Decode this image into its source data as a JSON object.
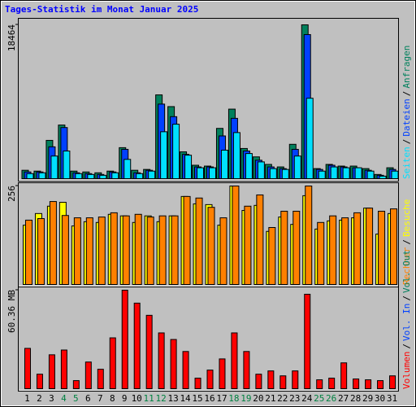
{
  "title": "Tages-Statistik im Monat Januar 2025",
  "legend_separator": "/",
  "chart_data": [
    {
      "type": "bar",
      "series": [
        {
          "name": "Anfragen",
          "color": "#00805c",
          "values": [
            1100,
            1000,
            4670,
            6500,
            1000,
            900,
            800,
            1000,
            3800,
            1100,
            1200,
            10100,
            8700,
            3300,
            1700,
            1600,
            6100,
            8400,
            3700,
            2700,
            1800,
            1500,
            4200,
            18464,
            1300,
            1800,
            1600,
            1600,
            1300,
            600,
            1400
          ]
        },
        {
          "name": "Dateien",
          "color": "#0040ff",
          "values": [
            900,
            900,
            3900,
            6200,
            800,
            700,
            600,
            900,
            3600,
            800,
            1100,
            9000,
            7500,
            3000,
            1500,
            1500,
            5200,
            7300,
            3400,
            2300,
            1500,
            1300,
            3600,
            17300,
            1200,
            1700,
            1500,
            1400,
            1100,
            500,
            1200
          ]
        },
        {
          "name": "Seiten",
          "color": "#00e0ff",
          "values": [
            700,
            800,
            2800,
            3400,
            700,
            600,
            500,
            800,
            2400,
            700,
            1000,
            5700,
            6600,
            2900,
            1400,
            1400,
            3500,
            5600,
            3100,
            2100,
            1300,
            1200,
            2800,
            9700,
            1000,
            1500,
            1400,
            1400,
            1000,
            400,
            1000
          ]
        }
      ],
      "ylim": [
        0,
        18464
      ],
      "yticks": [
        18464
      ]
    },
    {
      "type": "bar",
      "series": [
        {
          "name": "Besuche",
          "color": "#ffff00",
          "values": [
            155,
            185,
            204,
            214,
            153,
            164,
            162,
            183,
            179,
            162,
            179,
            164,
            179,
            229,
            210,
            208,
            155,
            256,
            193,
            206,
            139,
            176,
            157,
            231,
            145,
            166,
            168,
            174,
            199,
            132,
            185
          ]
        },
        {
          "name": "Rechner",
          "color": "#ff8000",
          "values": [
            168,
            172,
            216,
            180,
            174,
            174,
            176,
            187,
            179,
            183,
            176,
            179,
            179,
            229,
            225,
            201,
            174,
            256,
            204,
            233,
            149,
            191,
            191,
            256,
            162,
            179,
            174,
            187,
            199,
            191,
            197
          ]
        }
      ],
      "ylim": [
        0,
        256
      ],
      "yticks": [
        256
      ]
    },
    {
      "type": "bar",
      "series": [
        {
          "name": "Volumen",
          "color": "#ff0000",
          "values": [
            25.0,
            9.3,
            21.1,
            24.0,
            5.4,
            16.7,
            12.3,
            31.4,
            60.36,
            52.5,
            45.1,
            34.4,
            30.4,
            23.1,
            6.9,
            11.8,
            18.6,
            34.4,
            23.1,
            9.3,
            11.3,
            8.3,
            11.3,
            57.9,
            5.9,
            6.9,
            16.2,
            6.4,
            5.9,
            5.4,
            8.3
          ]
        }
      ],
      "legend_extra": [
        {
          "name": "Vol. In",
          "color": "#0040ff"
        },
        {
          "name": "Vol. Out",
          "color": "#00805c"
        }
      ],
      "ylim": [
        0,
        60.36
      ],
      "yticks": [
        {
          "value": 60.36,
          "label": "60.36 MB"
        }
      ],
      "categories": [
        "1",
        "2",
        "3",
        "4",
        "5",
        "6",
        "7",
        "8",
        "9",
        "10",
        "11",
        "12",
        "13",
        "14",
        "15",
        "16",
        "17",
        "18",
        "19",
        "20",
        "21",
        "22",
        "23",
        "24",
        "25",
        "26",
        "27",
        "28",
        "29",
        "30",
        "31"
      ],
      "category_colors": [
        "#000000",
        "#000000",
        "#000000",
        "#008040",
        "#008040",
        "#000000",
        "#000000",
        "#000000",
        "#000000",
        "#000000",
        "#008040",
        "#008040",
        "#000000",
        "#000000",
        "#000000",
        "#000000",
        "#000000",
        "#008040",
        "#008040",
        "#000000",
        "#000000",
        "#000000",
        "#000000",
        "#000000",
        "#008040",
        "#008040",
        "#000000",
        "#000000",
        "#000000",
        "#000000",
        "#000000"
      ]
    }
  ]
}
